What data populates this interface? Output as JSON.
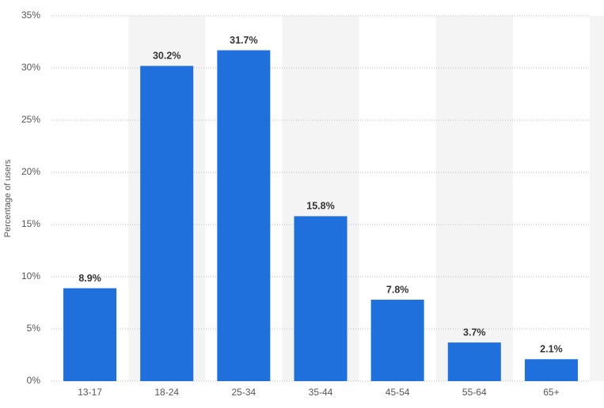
{
  "chart_data": {
    "type": "bar",
    "y_label": "Percentage of users",
    "categories": [
      "13-17",
      "18-24",
      "25-34",
      "35-44",
      "45-54",
      "55-64",
      "65+"
    ],
    "values": [
      8.9,
      30.2,
      31.7,
      15.8,
      7.8,
      3.7,
      2.1
    ],
    "value_labels": [
      "8.9%",
      "30.2%",
      "31.7%",
      "15.8%",
      "7.8%",
      "3.7%",
      "2.1%"
    ],
    "color": "#1f6fdc",
    "ylim": [
      0,
      35
    ],
    "yticks": [
      {
        "value": 0,
        "label": "0%"
      },
      {
        "value": 5,
        "label": "5%"
      },
      {
        "value": 10,
        "label": "10%"
      },
      {
        "value": 15,
        "label": "15%"
      },
      {
        "value": 20,
        "label": "20%"
      },
      {
        "value": 25,
        "label": "25%"
      },
      {
        "value": 30,
        "label": "30%"
      },
      {
        "value": 35,
        "label": "35%"
      }
    ],
    "grid": true
  }
}
